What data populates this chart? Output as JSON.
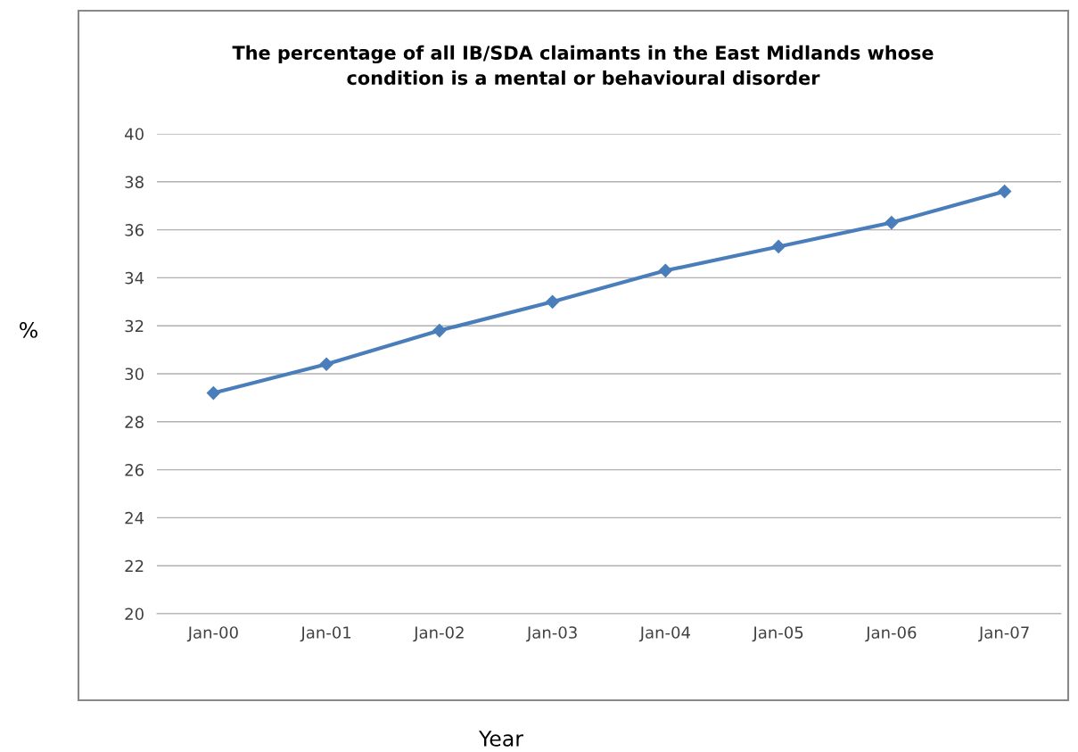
{
  "chart_data": {
    "type": "line",
    "title": "The percentage of all IB/SDA claimants in the East Midlands whose\ncondition is a mental or behavioural disorder",
    "xlabel": "Year",
    "ylabel": "%",
    "categories": [
      "Jan-00",
      "Jan-01",
      "Jan-02",
      "Jan-03",
      "Jan-04",
      "Jan-05",
      "Jan-06",
      "Jan-07"
    ],
    "series": [
      {
        "color": "#4a7ebb",
        "values": [
          29.2,
          30.4,
          31.8,
          33.0,
          34.3,
          35.3,
          36.3,
          37.6
        ]
      }
    ],
    "ylim": [
      20,
      40
    ],
    "yticks": [
      20,
      22,
      24,
      26,
      28,
      30,
      32,
      34,
      36,
      38,
      40
    ],
    "grid": "y",
    "marker": "diamond",
    "line_style": "solid",
    "legend": false
  }
}
